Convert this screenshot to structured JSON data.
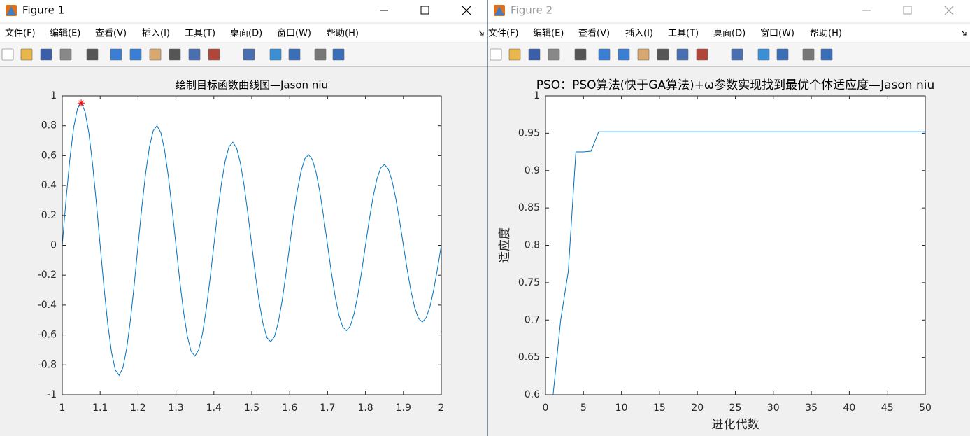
{
  "windows": [
    {
      "title": "Figure 1",
      "menu": [
        "文件(F)",
        "编辑(E)",
        "查看(V)",
        "插入(I)",
        "工具(T)",
        "桌面(D)",
        "窗口(W)",
        "帮助(H)"
      ]
    },
    {
      "title": "Figure 2",
      "menu": [
        "文件(F)",
        "编辑(E)",
        "查看(V)",
        "插入(I)",
        "工具(T)",
        "桌面(D)",
        "窗口(W)",
        "帮助(H)"
      ]
    }
  ],
  "chart_data": [
    {
      "type": "line",
      "title": "绘制目标函数曲线图—Jason niu",
      "xlim": [
        1,
        2
      ],
      "ylim": [
        -1,
        1
      ],
      "xticks": [
        1,
        1.1,
        1.2,
        1.3,
        1.4,
        1.5,
        1.6,
        1.7,
        1.8,
        1.9,
        2
      ],
      "yticks": [
        -1,
        -0.8,
        -0.6,
        -0.4,
        -0.2,
        0,
        0.2,
        0.4,
        0.6,
        0.8,
        1
      ],
      "series": [
        {
          "color": "#0072bd",
          "x": [
            1.0,
            1.01,
            1.02,
            1.03,
            1.04,
            1.05,
            1.06,
            1.07,
            1.08,
            1.09,
            1.1,
            1.11,
            1.12,
            1.13,
            1.14,
            1.15,
            1.16,
            1.17,
            1.18,
            1.19,
            1.2,
            1.21,
            1.22,
            1.23,
            1.24,
            1.25,
            1.26,
            1.27,
            1.28,
            1.29,
            1.3,
            1.31,
            1.32,
            1.33,
            1.34,
            1.35,
            1.36,
            1.37,
            1.38,
            1.39,
            1.4,
            1.41,
            1.42,
            1.43,
            1.44,
            1.45,
            1.46,
            1.47,
            1.48,
            1.49,
            1.5,
            1.51,
            1.52,
            1.53,
            1.54,
            1.55,
            1.56,
            1.57,
            1.58,
            1.59,
            1.6,
            1.61,
            1.62,
            1.63,
            1.64,
            1.65,
            1.66,
            1.67,
            1.68,
            1.69,
            1.7,
            1.71,
            1.72,
            1.73,
            1.74,
            1.75,
            1.76,
            1.77,
            1.78,
            1.79,
            1.8,
            1.81,
            1.82,
            1.83,
            1.84,
            1.85,
            1.86,
            1.87,
            1.88,
            1.89,
            1.9,
            1.91,
            1.92,
            1.93,
            1.94,
            1.95,
            1.96,
            1.97,
            1.98,
            1.99,
            2.0
          ],
          "values": [
            0,
            0.306,
            0.576,
            0.785,
            0.914,
            0.952,
            0.897,
            0.756,
            0.544,
            0.283,
            0,
            -0.278,
            -0.525,
            -0.716,
            -0.834,
            -0.87,
            -0.82,
            -0.691,
            -0.498,
            -0.26,
            0,
            0.255,
            0.482,
            0.658,
            0.767,
            0.8,
            0.755,
            0.637,
            0.459,
            0.24,
            0,
            -0.236,
            -0.445,
            -0.608,
            -0.71,
            -0.741,
            -0.699,
            -0.591,
            -0.426,
            -0.222,
            0,
            0.219,
            0.414,
            0.566,
            0.66,
            0.69,
            0.651,
            0.55,
            0.397,
            0.207,
            0,
            -0.205,
            -0.387,
            -0.529,
            -0.618,
            -0.645,
            -0.61,
            -0.515,
            -0.372,
            -0.194,
            0,
            0.192,
            0.363,
            0.496,
            0.58,
            0.606,
            0.573,
            0.484,
            0.35,
            0.183,
            0,
            -0.181,
            -0.342,
            -0.468,
            -0.547,
            -0.571,
            -0.54,
            -0.457,
            -0.33,
            -0.173,
            0,
            0.171,
            0.323,
            0.442,
            0.517,
            0.541,
            0.511,
            0.433,
            0.313,
            0.163,
            0,
            -0.162,
            -0.306,
            -0.419,
            -0.49,
            -0.513,
            -0.485,
            -0.411,
            -0.297,
            -0.155,
            0
          ]
        },
        {
          "color": "#ff0000",
          "marker": "*",
          "x": [
            1.05
          ],
          "values": [
            0.952
          ]
        }
      ]
    },
    {
      "type": "line",
      "title": "PSO：PSO算法(快于GA算法)+ω参数实现找到最优个体适应度—Jason niu",
      "xlabel": "进化代数",
      "ylabel": "适应度",
      "xlim": [
        0,
        50
      ],
      "ylim": [
        0.6,
        1
      ],
      "xticks": [
        0,
        5,
        10,
        15,
        20,
        25,
        30,
        35,
        40,
        45,
        50
      ],
      "yticks": [
        0.6,
        0.65,
        0.7,
        0.75,
        0.8,
        0.85,
        0.9,
        0.95,
        1
      ],
      "series": [
        {
          "color": "#0072bd",
          "x": [
            1,
            2,
            3,
            4,
            5,
            6,
            7,
            8,
            9,
            10,
            11,
            12,
            13,
            14,
            15,
            16,
            17,
            18,
            19,
            20,
            21,
            22,
            23,
            24,
            25,
            26,
            27,
            28,
            29,
            30,
            31,
            32,
            33,
            34,
            35,
            36,
            37,
            38,
            39,
            40,
            41,
            42,
            43,
            44,
            45,
            46,
            47,
            48,
            49,
            50
          ],
          "values": [
            0.6,
            0.7,
            0.765,
            0.925,
            0.925,
            0.926,
            0.952,
            0.952,
            0.952,
            0.952,
            0.952,
            0.952,
            0.952,
            0.952,
            0.952,
            0.952,
            0.952,
            0.952,
            0.952,
            0.952,
            0.952,
            0.952,
            0.952,
            0.952,
            0.952,
            0.952,
            0.952,
            0.952,
            0.952,
            0.952,
            0.952,
            0.952,
            0.952,
            0.952,
            0.952,
            0.952,
            0.952,
            0.952,
            0.952,
            0.952,
            0.952,
            0.952,
            0.952,
            0.952,
            0.952,
            0.952,
            0.952,
            0.952,
            0.952,
            0.952
          ]
        }
      ]
    }
  ]
}
